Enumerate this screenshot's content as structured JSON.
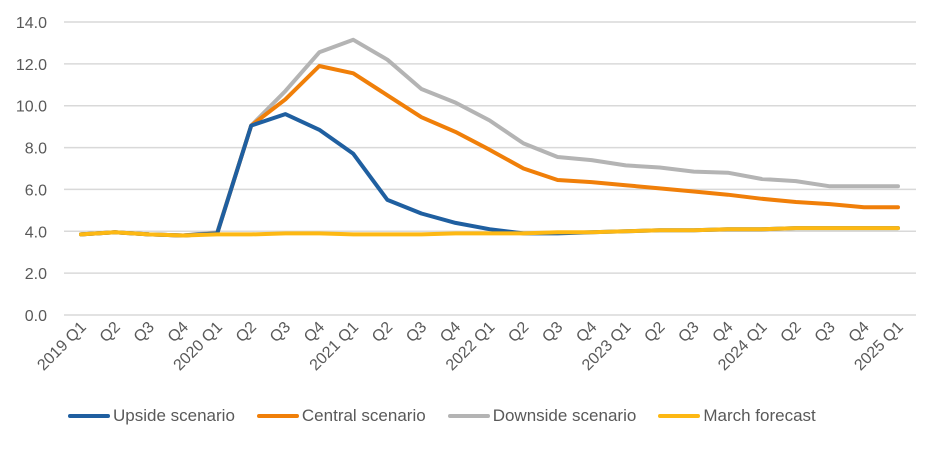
{
  "chart_data": {
    "type": "line",
    "title": "",
    "xlabel": "",
    "ylabel": "",
    "ylim": [
      0,
      14
    ],
    "yticks": [
      0,
      2,
      4,
      6,
      8,
      10,
      12,
      14
    ],
    "ytick_labels": [
      "0.0",
      "2.0",
      "4.0",
      "6.0",
      "8.0",
      "10.0",
      "12.0",
      "14.0"
    ],
    "grid": true,
    "legend_position": "bottom",
    "categories": [
      "2019 Q1",
      "Q2",
      "Q3",
      "Q4",
      "2020 Q1",
      "Q2",
      "Q3",
      "Q4",
      "2021 Q1",
      "Q2",
      "Q3",
      "Q4",
      "2022 Q1",
      "Q2",
      "Q3",
      "Q4",
      "2023 Q1",
      "Q2",
      "Q3",
      "Q4",
      "2024 Q1",
      "Q2",
      "Q3",
      "Q4",
      "2025 Q1"
    ],
    "series": [
      {
        "name": "Upside scenario",
        "color": "#1F5FA0",
        "values": [
          3.85,
          3.95,
          3.85,
          3.8,
          3.9,
          9.05,
          9.6,
          8.85,
          7.7,
          5.5,
          4.85,
          4.4,
          4.1,
          3.9,
          3.9,
          3.95,
          4.0,
          4.05,
          4.05,
          4.1,
          4.1,
          4.15,
          4.15,
          4.15,
          4.15
        ]
      },
      {
        "name": "Central scenario",
        "color": "#F07F09",
        "values": [
          3.85,
          3.95,
          3.85,
          3.8,
          3.9,
          9.05,
          10.3,
          11.9,
          11.55,
          10.5,
          9.45,
          8.75,
          7.9,
          7.0,
          6.45,
          6.35,
          6.2,
          6.05,
          5.9,
          5.75,
          5.55,
          5.4,
          5.3,
          5.15,
          5.15
        ]
      },
      {
        "name": "Downside scenario",
        "color": "#B4B4B4",
        "values": [
          3.85,
          3.95,
          3.85,
          3.8,
          3.95,
          9.05,
          10.7,
          12.55,
          13.15,
          12.2,
          10.8,
          10.15,
          9.3,
          8.2,
          7.55,
          7.4,
          7.15,
          7.05,
          6.85,
          6.8,
          6.5,
          6.4,
          6.15,
          6.15,
          6.15
        ]
      },
      {
        "name": "March forecast",
        "color": "#FDB813",
        "values": [
          3.85,
          3.95,
          3.85,
          3.8,
          3.85,
          3.85,
          3.9,
          3.9,
          3.85,
          3.85,
          3.85,
          3.9,
          3.9,
          3.9,
          3.95,
          3.95,
          4.0,
          4.05,
          4.05,
          4.1,
          4.1,
          4.15,
          4.15,
          4.15,
          4.15
        ]
      }
    ]
  },
  "colors": {
    "gridline": "#D9D9D9",
    "text": "#595959"
  }
}
